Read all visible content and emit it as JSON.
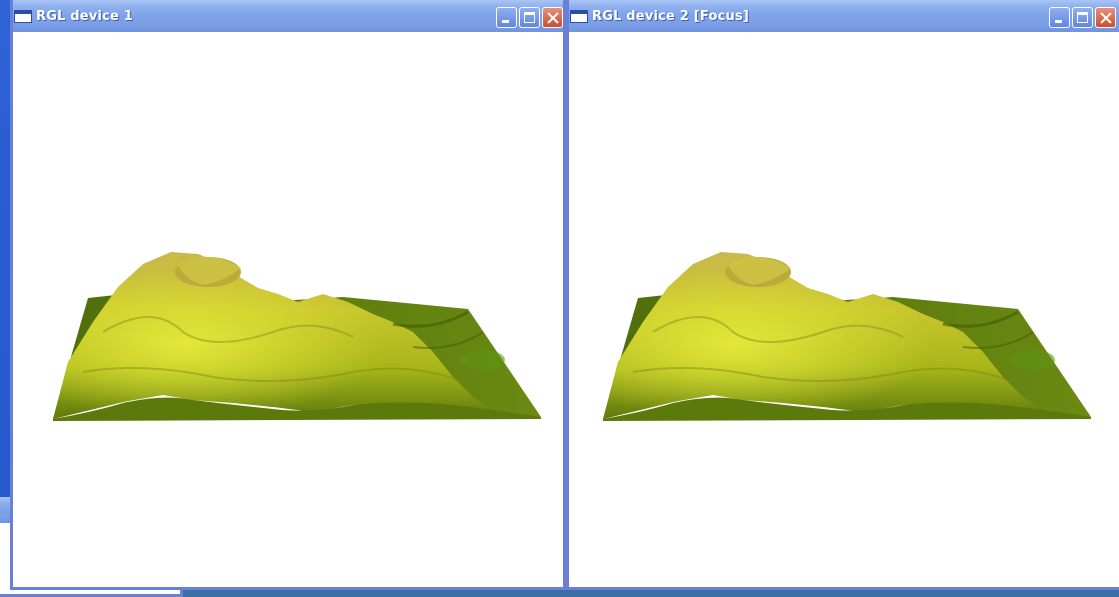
{
  "windows": {
    "device1": {
      "title": "RGL device 1"
    },
    "device2": {
      "title": "RGL device 2 [Focus]"
    },
    "device3": {
      "title": ""
    }
  },
  "icons": {
    "title_icon": "window-icon",
    "minimize": "minimize-icon",
    "maximize": "maximize-icon",
    "close": "close-icon"
  },
  "colors": {
    "titlebar": "#7b9ee6",
    "frame": "#6b7fd6",
    "desktop": "#2a5bd0",
    "terrain_light": "#d8d030",
    "terrain_dark": "#3e5f0a"
  }
}
